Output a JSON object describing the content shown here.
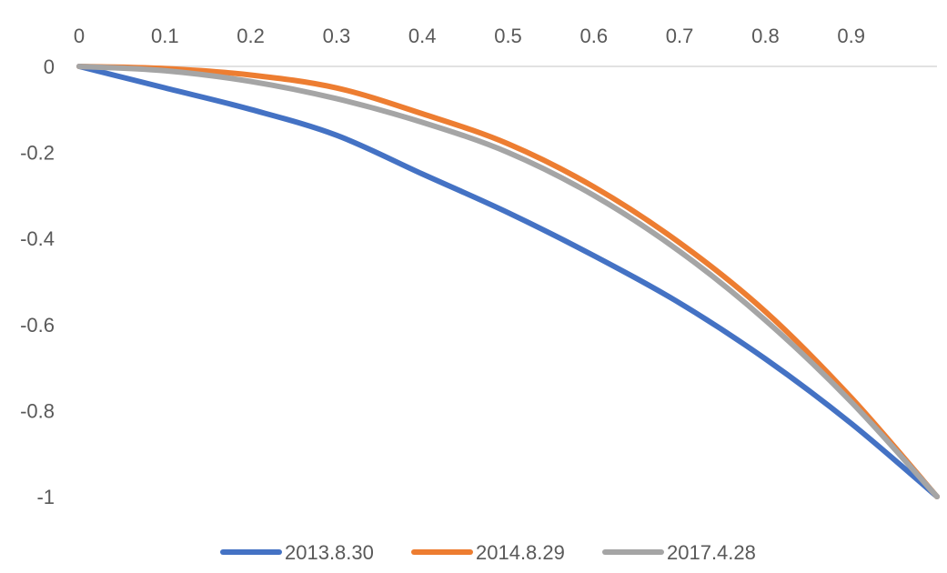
{
  "chart_data": {
    "type": "line",
    "title": "",
    "xlabel": "",
    "ylabel": "",
    "xlim": [
      0,
      1
    ],
    "ylim": [
      -1,
      0
    ],
    "x_axis_position": "top",
    "grid": false,
    "legend_position": "bottom",
    "x_ticks": [
      "0",
      "0.1",
      "0.2",
      "0.3",
      "0.4",
      "0.5",
      "0.6",
      "0.7",
      "0.8",
      "0.9"
    ],
    "x_tick_values": [
      0,
      0.1,
      0.2,
      0.3,
      0.4,
      0.5,
      0.6,
      0.7,
      0.8,
      0.9
    ],
    "y_ticks": [
      "0",
      "-0.2",
      "-0.4",
      "-0.6",
      "-0.8",
      "-1"
    ],
    "y_tick_values": [
      0,
      -0.2,
      -0.4,
      -0.6,
      -0.8,
      -1
    ],
    "x": [
      0,
      0.1,
      0.2,
      0.3,
      0.4,
      0.5,
      0.6,
      0.7,
      0.8,
      0.9,
      1.0
    ],
    "series": [
      {
        "name": "2013.8.30",
        "color": "#4472C4",
        "values": [
          0,
          -0.05,
          -0.1,
          -0.16,
          -0.25,
          -0.34,
          -0.44,
          -0.55,
          -0.68,
          -0.83,
          -1.0
        ]
      },
      {
        "name": "2014.8.29",
        "color": "#ED7D31",
        "values": [
          0,
          -0.005,
          -0.02,
          -0.05,
          -0.11,
          -0.18,
          -0.28,
          -0.41,
          -0.57,
          -0.77,
          -1.0
        ]
      },
      {
        "name": "2017.4.28",
        "color": "#A5A5A5",
        "values": [
          0,
          -0.01,
          -0.035,
          -0.075,
          -0.13,
          -0.2,
          -0.3,
          -0.43,
          -0.59,
          -0.78,
          -1.0
        ]
      }
    ]
  }
}
